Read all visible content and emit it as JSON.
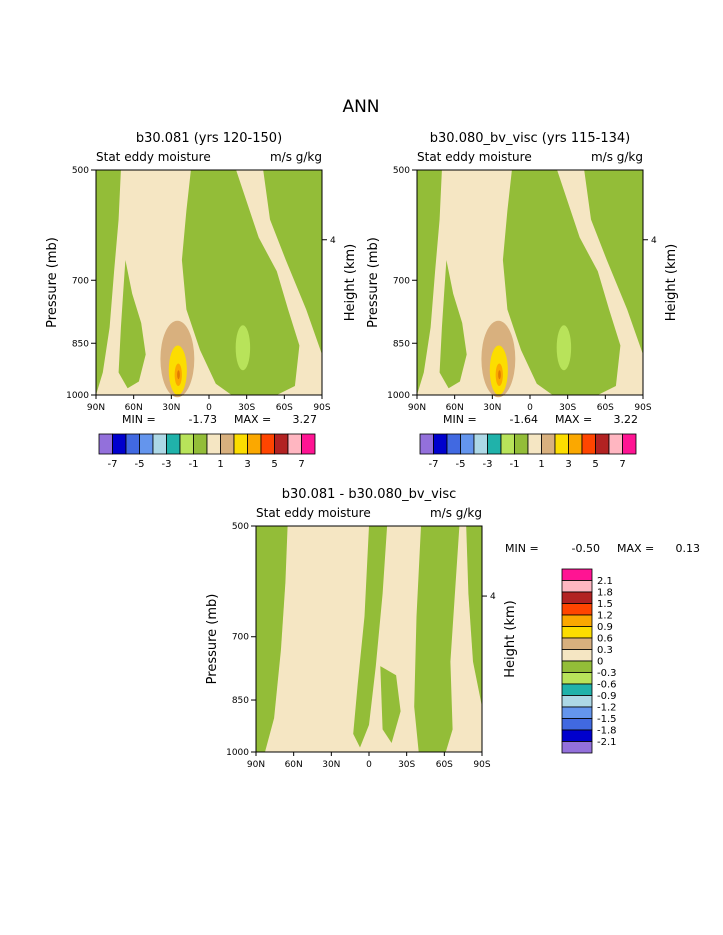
{
  "title": "ANN",
  "colors": {
    "tan": "#f5e6c3",
    "green": "#93bd38",
    "lightgreen": "#b8e35a",
    "brown": "#d8b07e",
    "yellow": "#fcdd00",
    "orange": "#fba800",
    "red": "#e07b00"
  },
  "chart_data": [
    {
      "type": "contour",
      "panel": "left",
      "title": "b30.081 (yrs 120-150)",
      "subtitle_left": "Stat eddy moisture",
      "subtitle_right": "m/s g/kg",
      "ylabel": "Pressure (mb)",
      "ylabel_right": "Height (km)",
      "y_ticks": [
        "500",
        "700",
        "850",
        "1000"
      ],
      "y_right_ticks": [
        "4"
      ],
      "x_ticks": [
        "90N",
        "60N",
        "30N",
        "0",
        "30S",
        "60S",
        "90S"
      ],
      "min_text": "MIN =",
      "min_value": "-1.73",
      "max_text": "MAX =",
      "max_value": "3.27",
      "colorbar": {
        "labels": [
          "-7",
          "-5",
          "-3",
          "-1",
          "1",
          "3",
          "5",
          "7"
        ],
        "colors": [
          "#9370db",
          "#0000cd",
          "#4169e1",
          "#6495ed",
          "#add8e6",
          "#20b2aa",
          "#b8e35a",
          "#93bd38",
          "#f5e6c3",
          "#d8b07e",
          "#fcdd00",
          "#fba800",
          "#ff4500",
          "#b22222",
          "#ffb6c1",
          "#ff1493"
        ]
      }
    },
    {
      "type": "contour",
      "panel": "right",
      "title": "b30.080_bv_visc (yrs 115-134)",
      "subtitle_left": "Stat eddy moisture",
      "subtitle_right": "m/s g/kg",
      "ylabel": "Pressure (mb)",
      "ylabel_right": "Height (km)",
      "y_ticks": [
        "500",
        "700",
        "850",
        "1000"
      ],
      "y_right_ticks": [
        "4"
      ],
      "x_ticks": [
        "90N",
        "60N",
        "30N",
        "0",
        "30S",
        "60S",
        "90S"
      ],
      "min_text": "MIN =",
      "min_value": "-1.64",
      "max_text": "MAX =",
      "max_value": "3.22",
      "colorbar": {
        "labels": [
          "-7",
          "-5",
          "-3",
          "-1",
          "1",
          "3",
          "5",
          "7"
        ],
        "colors": [
          "#9370db",
          "#0000cd",
          "#4169e1",
          "#6495ed",
          "#add8e6",
          "#20b2aa",
          "#b8e35a",
          "#93bd38",
          "#f5e6c3",
          "#d8b07e",
          "#fcdd00",
          "#fba800",
          "#ff4500",
          "#b22222",
          "#ffb6c1",
          "#ff1493"
        ]
      }
    },
    {
      "type": "contour",
      "panel": "diff",
      "title": "b30.081 - b30.080_bv_visc",
      "subtitle_left": "Stat eddy moisture",
      "subtitle_right": "m/s g/kg",
      "ylabel": "Pressure (mb)",
      "ylabel_right": "Height (km)",
      "y_ticks": [
        "500",
        "700",
        "850",
        "1000"
      ],
      "y_right_ticks": [
        "4"
      ],
      "x_ticks": [
        "90N",
        "60N",
        "30N",
        "0",
        "30S",
        "60S",
        "90S"
      ],
      "min_text": "MIN =",
      "min_value": "-0.50",
      "max_text": "MAX =",
      "max_value": "0.13",
      "colorbar": {
        "labels": [
          "2.1",
          "1.8",
          "1.5",
          "1.2",
          "0.9",
          "0.6",
          "0.3",
          "0",
          "-0.3",
          "-0.6",
          "-0.9",
          "-1.2",
          "-1.5",
          "-1.8",
          "-2.1"
        ],
        "colors": [
          "#ff1493",
          "#ffb6c1",
          "#b22222",
          "#ff4500",
          "#fba800",
          "#fcdd00",
          "#d8b07e",
          "#f5e6c3",
          "#93bd38",
          "#b8e35a",
          "#20b2aa",
          "#add8e6",
          "#6495ed",
          "#4169e1",
          "#0000cd",
          "#9370db"
        ]
      }
    }
  ]
}
